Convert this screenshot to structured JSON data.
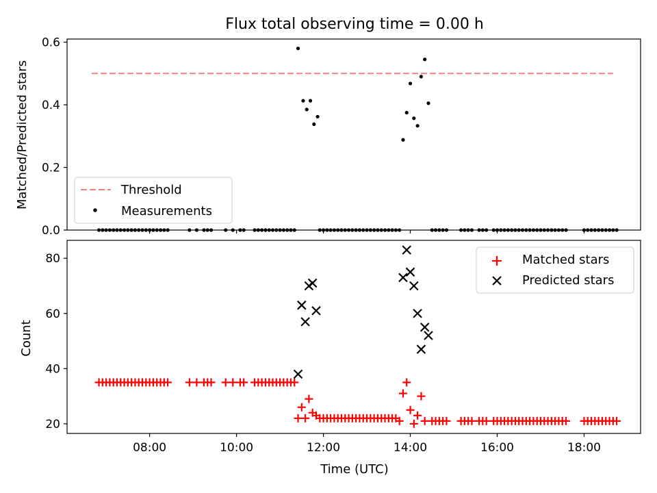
{
  "chart_data": [
    {
      "type": "scatter",
      "title": "Flux total observing time = 0.00 h",
      "xlabel": "",
      "ylabel": "Matched/Predicted stars",
      "ylim": [
        0,
        0.61
      ],
      "xlim_hours": [
        6.1,
        19.3
      ],
      "yticks": [
        0.0,
        0.2,
        0.4,
        0.6
      ],
      "ytick_labels": [
        "0.0",
        "0.2",
        "0.4",
        "0.6"
      ],
      "legend_position": "lower-left",
      "grid": false,
      "threshold": {
        "name": "Threshold",
        "value": 0.5,
        "x_range": [
          "06:40",
          "18:40"
        ],
        "color": "#f08080",
        "style": "dashed"
      },
      "series": [
        {
          "name": "Measurements",
          "marker": "dot",
          "color": "#000000",
          "points": [
            [
              "11:25",
              0.58
            ],
            [
              "11:32",
              0.413
            ],
            [
              "11:37",
              0.385
            ],
            [
              "11:42",
              0.413
            ],
            [
              "11:47",
              0.338
            ],
            [
              "11:52",
              0.362
            ],
            [
              "13:50",
              0.288
            ],
            [
              "13:55",
              0.375
            ],
            [
              "14:00",
              0.468
            ],
            [
              "14:05",
              0.357
            ],
            [
              "14:10",
              0.333
            ],
            [
              "14:15",
              0.49
            ],
            [
              "14:20",
              0.545
            ],
            [
              "14:25",
              0.405
            ]
          ],
          "zero_times": [
            "06:50",
            "06:55",
            "07:00",
            "07:05",
            "07:10",
            "07:15",
            "07:20",
            "07:25",
            "07:30",
            "07:35",
            "07:40",
            "07:45",
            "07:50",
            "07:55",
            "08:00",
            "08:05",
            "08:10",
            "08:15",
            "08:20",
            "08:25",
            "08:55",
            "09:05",
            "09:15",
            "09:20",
            "09:25",
            "09:45",
            "09:55",
            "10:05",
            "10:10",
            "10:25",
            "10:30",
            "10:35",
            "10:40",
            "10:45",
            "10:50",
            "10:55",
            "11:00",
            "11:05",
            "11:10",
            "11:15",
            "11:20",
            "11:55",
            "12:00",
            "12:05",
            "12:10",
            "12:15",
            "12:20",
            "12:25",
            "12:30",
            "12:35",
            "12:40",
            "12:45",
            "12:50",
            "12:55",
            "13:00",
            "13:05",
            "13:10",
            "13:15",
            "13:20",
            "13:25",
            "13:30",
            "13:35",
            "13:40",
            "13:45",
            "14:30",
            "14:35",
            "14:40",
            "14:45",
            "14:50",
            "15:10",
            "15:15",
            "15:20",
            "15:25",
            "15:35",
            "15:40",
            "15:45",
            "15:55",
            "16:00",
            "16:05",
            "16:10",
            "16:15",
            "16:20",
            "16:25",
            "16:30",
            "16:35",
            "16:40",
            "16:45",
            "16:50",
            "16:55",
            "17:00",
            "17:05",
            "17:10",
            "17:15",
            "17:20",
            "17:25",
            "17:30",
            "17:35",
            "18:00",
            "18:05",
            "18:10",
            "18:15",
            "18:20",
            "18:25",
            "18:30",
            "18:35",
            "18:40",
            "18:45"
          ]
        }
      ]
    },
    {
      "type": "scatter",
      "title": "",
      "xlabel": "Time (UTC)",
      "ylabel": "Count",
      "ylim": [
        16.5,
        86.5
      ],
      "xlim_hours": [
        6.1,
        19.3
      ],
      "yticks": [
        20,
        40,
        60,
        80
      ],
      "ytick_labels": [
        "20",
        "40",
        "60",
        "80"
      ],
      "xticks": [
        "08:00",
        "10:00",
        "12:00",
        "14:00",
        "16:00",
        "18:00"
      ],
      "legend_position": "top-right",
      "grid": false,
      "series": [
        {
          "name": "Matched stars",
          "marker": "plus",
          "color": "#ff0000",
          "points": [
            [
              "06:50",
              35
            ],
            [
              "06:55",
              35
            ],
            [
              "07:00",
              35
            ],
            [
              "07:05",
              35
            ],
            [
              "07:10",
              35
            ],
            [
              "07:15",
              35
            ],
            [
              "07:20",
              35
            ],
            [
              "07:25",
              35
            ],
            [
              "07:30",
              35
            ],
            [
              "07:35",
              35
            ],
            [
              "07:40",
              35
            ],
            [
              "07:45",
              35
            ],
            [
              "07:50",
              35
            ],
            [
              "07:55",
              35
            ],
            [
              "08:00",
              35
            ],
            [
              "08:05",
              35
            ],
            [
              "08:10",
              35
            ],
            [
              "08:15",
              35
            ],
            [
              "08:20",
              35
            ],
            [
              "08:25",
              35
            ],
            [
              "08:55",
              35
            ],
            [
              "09:05",
              35
            ],
            [
              "09:15",
              35
            ],
            [
              "09:20",
              35
            ],
            [
              "09:25",
              35
            ],
            [
              "09:45",
              35
            ],
            [
              "09:55",
              35
            ],
            [
              "10:05",
              35
            ],
            [
              "10:10",
              35
            ],
            [
              "10:25",
              35
            ],
            [
              "10:30",
              35
            ],
            [
              "10:35",
              35
            ],
            [
              "10:40",
              35
            ],
            [
              "10:45",
              35
            ],
            [
              "10:50",
              35
            ],
            [
              "10:55",
              35
            ],
            [
              "11:00",
              35
            ],
            [
              "11:05",
              35
            ],
            [
              "11:10",
              35
            ],
            [
              "11:15",
              35
            ],
            [
              "11:20",
              35
            ],
            [
              "11:25",
              22
            ],
            [
              "11:30",
              26
            ],
            [
              "11:35",
              22
            ],
            [
              "11:40",
              29
            ],
            [
              "11:45",
              24
            ],
            [
              "11:50",
              23
            ],
            [
              "11:55",
              22
            ],
            [
              "12:00",
              22
            ],
            [
              "12:05",
              22
            ],
            [
              "12:10",
              22
            ],
            [
              "12:15",
              22
            ],
            [
              "12:20",
              22
            ],
            [
              "12:25",
              22
            ],
            [
              "12:30",
              22
            ],
            [
              "12:35",
              22
            ],
            [
              "12:40",
              22
            ],
            [
              "12:45",
              22
            ],
            [
              "12:50",
              22
            ],
            [
              "12:55",
              22
            ],
            [
              "13:00",
              22
            ],
            [
              "13:05",
              22
            ],
            [
              "13:10",
              22
            ],
            [
              "13:15",
              22
            ],
            [
              "13:20",
              22
            ],
            [
              "13:25",
              22
            ],
            [
              "13:30",
              22
            ],
            [
              "13:35",
              22
            ],
            [
              "13:40",
              22
            ],
            [
              "13:45",
              21
            ],
            [
              "13:50",
              31
            ],
            [
              "13:55",
              35
            ],
            [
              "14:00",
              25
            ],
            [
              "14:05",
              20
            ],
            [
              "14:10",
              23
            ],
            [
              "14:15",
              30
            ],
            [
              "14:20",
              21
            ],
            [
              "14:30",
              21
            ],
            [
              "14:35",
              21
            ],
            [
              "14:40",
              21
            ],
            [
              "14:45",
              21
            ],
            [
              "14:50",
              21
            ],
            [
              "15:10",
              21
            ],
            [
              "15:15",
              21
            ],
            [
              "15:20",
              21
            ],
            [
              "15:25",
              21
            ],
            [
              "15:35",
              21
            ],
            [
              "15:40",
              21
            ],
            [
              "15:45",
              21
            ],
            [
              "15:55",
              21
            ],
            [
              "16:00",
              21
            ],
            [
              "16:05",
              21
            ],
            [
              "16:10",
              21
            ],
            [
              "16:15",
              21
            ],
            [
              "16:20",
              21
            ],
            [
              "16:25",
              21
            ],
            [
              "16:30",
              21
            ],
            [
              "16:35",
              21
            ],
            [
              "16:40",
              21
            ],
            [
              "16:45",
              21
            ],
            [
              "16:50",
              21
            ],
            [
              "16:55",
              21
            ],
            [
              "17:00",
              21
            ],
            [
              "17:05",
              21
            ],
            [
              "17:10",
              21
            ],
            [
              "17:15",
              21
            ],
            [
              "17:20",
              21
            ],
            [
              "17:25",
              21
            ],
            [
              "17:30",
              21
            ],
            [
              "17:35",
              21
            ],
            [
              "18:00",
              21
            ],
            [
              "18:05",
              21
            ],
            [
              "18:10",
              21
            ],
            [
              "18:15",
              21
            ],
            [
              "18:20",
              21
            ],
            [
              "18:25",
              21
            ],
            [
              "18:30",
              21
            ],
            [
              "18:35",
              21
            ],
            [
              "18:40",
              21
            ],
            [
              "18:45",
              21
            ]
          ]
        },
        {
          "name": "Predicted stars",
          "marker": "x",
          "color": "#000000",
          "points": [
            [
              "11:25",
              38
            ],
            [
              "11:30",
              63
            ],
            [
              "11:35",
              57
            ],
            [
              "11:40",
              70
            ],
            [
              "11:45",
              71
            ],
            [
              "11:50",
              61
            ],
            [
              "13:50",
              73
            ],
            [
              "13:55",
              83
            ],
            [
              "14:00",
              75
            ],
            [
              "14:05",
              70
            ],
            [
              "14:10",
              60
            ],
            [
              "14:15",
              47
            ],
            [
              "14:20",
              55
            ],
            [
              "14:25",
              52
            ]
          ]
        }
      ]
    }
  ]
}
